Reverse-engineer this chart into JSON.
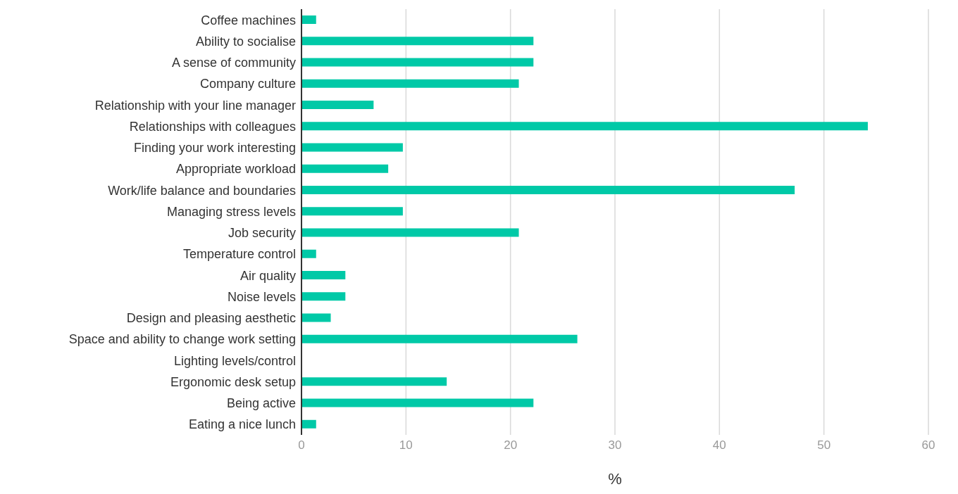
{
  "chart_data": {
    "type": "bar",
    "orientation": "horizontal",
    "xlabel": "%",
    "categories": [
      "Coffee machines",
      "Ability to socialise",
      "A sense of community",
      "Company culture",
      "Relationship with your line manager",
      "Relationships with colleagues",
      "Finding your work interesting",
      "Appropriate workload",
      "Work/life balance and boundaries",
      "Managing stress levels",
      "Job security",
      "Temperature control",
      "Air quality",
      "Noise levels",
      "Design and pleasing aesthetic",
      "Space and ability to change work setting",
      "Lighting levels/control",
      "Ergonomic desk setup",
      "Being active",
      "Eating a nice lunch"
    ],
    "values": [
      1.4,
      22.2,
      22.2,
      20.8,
      6.9,
      54.2,
      9.7,
      8.3,
      47.2,
      9.7,
      20.8,
      1.4,
      4.2,
      4.2,
      2.8,
      26.4,
      0,
      13.9,
      22.2,
      1.4
    ],
    "color": "#00c9a7",
    "xlim": [
      0,
      60
    ],
    "xticks": [
      0,
      10,
      20,
      30,
      40,
      50,
      60
    ],
    "grid": "x"
  }
}
